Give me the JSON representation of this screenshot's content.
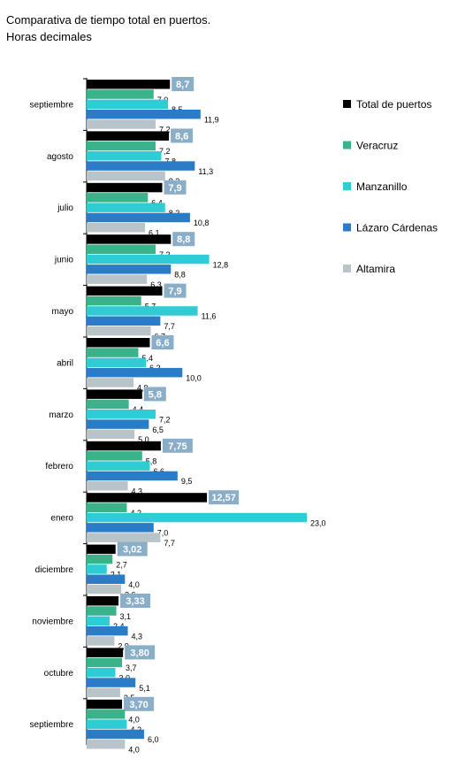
{
  "chart_data": {
    "type": "bar",
    "orientation": "horizontal",
    "title": "Comparativa de tiempo total en puertos.",
    "subtitle": "Horas decimales",
    "categories": [
      "septiembre",
      "agosto",
      "julio",
      "junio",
      "mayo",
      "abril",
      "marzo",
      "febrero",
      "enero",
      "diciembre",
      "noviembre",
      "octubre",
      "septiembre"
    ],
    "series": [
      {
        "name": "Total de puertos",
        "color": "#000000",
        "values": [
          8.7,
          8.6,
          7.9,
          8.8,
          7.9,
          6.6,
          5.8,
          7.75,
          12.57,
          3.02,
          3.33,
          3.8,
          3.7
        ],
        "labels": [
          "8,7",
          "8,6",
          "7,9",
          "8,8",
          "7,9",
          "6,6",
          "5,8",
          "7,75",
          "12,57",
          "3,02",
          "3,33",
          "3,80",
          "3,70"
        ]
      },
      {
        "name": "Veracruz",
        "color": "#3bb38a",
        "values": [
          7.0,
          7.2,
          6.4,
          7.2,
          5.7,
          5.4,
          4.4,
          5.8,
          4.2,
          2.7,
          3.1,
          3.7,
          4.0
        ],
        "labels": [
          "7,0",
          "7,2",
          "6,4",
          "7,2",
          "5,7",
          "5,4",
          "4,4",
          "5,8",
          "4,2",
          "2,7",
          "3,1",
          "3,7",
          "4,0"
        ]
      },
      {
        "name": "Manzanillo",
        "color": "#2ecdd6",
        "values": [
          8.5,
          7.8,
          8.2,
          12.8,
          11.6,
          6.2,
          7.2,
          6.6,
          23.0,
          2.1,
          2.4,
          3.0,
          4.2
        ],
        "labels": [
          "8,5",
          "7,8",
          "8,2",
          "12,8",
          "11,6",
          "6,2",
          "7,2",
          "6,6",
          "23,0",
          "2,1",
          "2,4",
          "3,0",
          "4,2"
        ]
      },
      {
        "name": "Lázaro Cárdenas",
        "color": "#2b7cc6",
        "values": [
          11.9,
          11.3,
          10.8,
          8.8,
          7.7,
          10.0,
          6.5,
          9.5,
          7.0,
          4.0,
          4.3,
          5.1,
          6.0
        ],
        "labels": [
          "11,9",
          "11,3",
          "10,8",
          "8,8",
          "7,7",
          "10,0",
          "6,5",
          "9,5",
          "7,0",
          "4,0",
          "4,3",
          "5,1",
          "6,0"
        ]
      },
      {
        "name": "Altamira",
        "color": "#b9c4c9",
        "values": [
          7.2,
          8.2,
          6.1,
          6.3,
          6.7,
          4.9,
          5.0,
          4.3,
          7.7,
          3.6,
          2.9,
          3.5,
          4.0
        ],
        "labels": [
          "7,2",
          "8,2",
          "6,1",
          "6,3",
          "6,7",
          "4,9",
          "5,0",
          "4,3",
          "7,7",
          "3,6",
          "2,9",
          "3,5",
          "4,0"
        ]
      }
    ],
    "highlight_series": "Total de puertos",
    "highlight_label_color": "#8aaec8",
    "xlim": [
      0,
      23
    ],
    "legend_position": "right",
    "grid": false
  }
}
